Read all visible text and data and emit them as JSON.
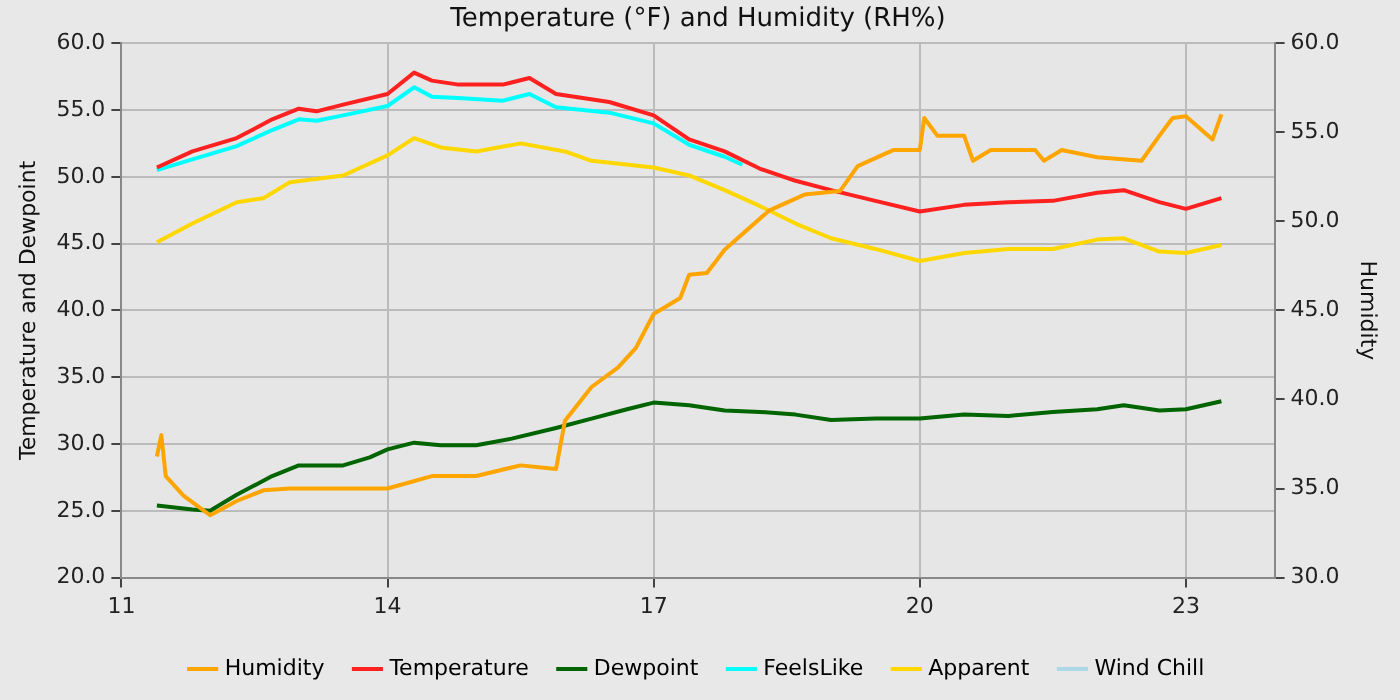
{
  "chart_data": {
    "type": "line",
    "title": "Temperature (°F) and Humidity (RH%)",
    "ylabel": "Temperature and Dewpoint",
    "y2label": "Humidity",
    "xlim": [
      11,
      24
    ],
    "xticks": [
      11,
      14,
      17,
      20,
      23
    ],
    "ylim": [
      20,
      60
    ],
    "yticks": [
      {
        "value": 20,
        "label": "20.0"
      },
      {
        "value": 25,
        "label": "25.0"
      },
      {
        "value": 30,
        "label": "30.0"
      },
      {
        "value": 35,
        "label": "35.0"
      },
      {
        "value": 40,
        "label": "40.0"
      },
      {
        "value": 45,
        "label": "45.0"
      },
      {
        "value": 50,
        "label": "50.0"
      },
      {
        "value": 55,
        "label": "55.0"
      },
      {
        "value": 60,
        "label": "60.0"
      }
    ],
    "y2lim": [
      30,
      60
    ],
    "y2ticks": [
      {
        "value": 30,
        "label": "30.0"
      },
      {
        "value": 35,
        "label": "35.0"
      },
      {
        "value": 40,
        "label": "40.0"
      },
      {
        "value": 45,
        "label": "45.0"
      },
      {
        "value": 50,
        "label": "50.0"
      },
      {
        "value": 55,
        "label": "55.0"
      },
      {
        "value": 60,
        "label": "60.0"
      }
    ],
    "grid": true,
    "legend": "bottom",
    "marker": "none",
    "line_style": "solid",
    "series": [
      {
        "name": "Humidity",
        "color": "#ffa500",
        "axis": "y2",
        "x": [
          11.4,
          11.45,
          11.5,
          11.7,
          12.0,
          12.3,
          12.6,
          12.9,
          13.5,
          14.0,
          14.5,
          15.0,
          15.5,
          15.9,
          16.0,
          16.3,
          16.6,
          16.8,
          17.0,
          17.3,
          17.4,
          17.6,
          17.8,
          18.3,
          18.7,
          19.1,
          19.3,
          19.7,
          20.0,
          20.05,
          20.2,
          20.5,
          20.6,
          20.8,
          21.3,
          21.4,
          21.6,
          22.0,
          22.5,
          22.7,
          22.85,
          23.0,
          23.3,
          23.4
        ],
        "values": [
          36.8,
          38.0,
          35.7,
          34.6,
          33.5,
          34.3,
          34.9,
          35.0,
          35.0,
          35.0,
          35.7,
          35.7,
          36.3,
          36.1,
          38.8,
          40.7,
          41.8,
          42.9,
          44.8,
          45.7,
          47.0,
          47.1,
          48.4,
          50.6,
          51.5,
          51.7,
          53.1,
          54.0,
          54.0,
          55.8,
          54.8,
          54.8,
          53.4,
          54.0,
          54.0,
          53.4,
          54.0,
          53.6,
          53.4,
          54.8,
          55.8,
          55.9,
          54.6,
          56.0
        ]
      },
      {
        "name": "Temperature",
        "color": "#ff2020",
        "x": [
          11.4,
          11.8,
          12.3,
          12.7,
          13.0,
          13.2,
          13.5,
          14.0,
          14.3,
          14.5,
          14.8,
          15.3,
          15.6,
          15.9,
          16.5,
          17.0,
          17.4,
          17.8,
          18.2,
          18.6,
          19.0,
          19.5,
          20.0,
          20.5,
          21.0,
          21.5,
          22.0,
          22.3,
          22.7,
          23.0,
          23.4
        ],
        "values": [
          50.7,
          51.9,
          52.9,
          54.3,
          55.1,
          54.9,
          55.4,
          56.2,
          57.8,
          57.2,
          56.9,
          56.9,
          57.4,
          56.2,
          55.6,
          54.6,
          52.8,
          51.9,
          50.6,
          49.7,
          49.0,
          48.2,
          47.4,
          47.9,
          48.1,
          48.2,
          48.8,
          49.0,
          48.1,
          47.6,
          48.4
        ]
      },
      {
        "name": "Dewpoint",
        "color": "#006400",
        "x": [
          11.4,
          11.8,
          12.0,
          12.3,
          12.7,
          13.0,
          13.5,
          13.8,
          14.0,
          14.3,
          14.6,
          15.0,
          15.4,
          15.9,
          16.3,
          16.7,
          17.0,
          17.4,
          17.8,
          18.2,
          18.6,
          19.0,
          19.5,
          20.0,
          20.5,
          21.0,
          21.5,
          22.0,
          22.3,
          22.7,
          23.0,
          23.4
        ],
        "values": [
          25.4,
          25.1,
          25.0,
          26.2,
          27.6,
          28.4,
          28.4,
          29.0,
          29.6,
          30.1,
          29.9,
          29.9,
          30.4,
          31.2,
          31.9,
          32.6,
          33.1,
          32.9,
          32.5,
          32.4,
          32.2,
          31.8,
          31.9,
          31.9,
          32.2,
          32.1,
          32.4,
          32.6,
          32.9,
          32.5,
          32.6,
          33.2
        ]
      },
      {
        "name": "FeelsLike",
        "color": "#00ffff",
        "x": [
          11.4,
          11.8,
          12.3,
          12.7,
          13.0,
          13.2,
          13.5,
          14.0,
          14.3,
          14.5,
          14.8,
          15.3,
          15.6,
          15.9,
          16.5,
          17.0,
          17.4,
          17.8,
          18.0
        ],
        "values": [
          50.5,
          51.3,
          52.3,
          53.5,
          54.3,
          54.2,
          54.6,
          55.3,
          56.7,
          56.0,
          55.9,
          55.7,
          56.2,
          55.2,
          54.8,
          54.0,
          52.4,
          51.5,
          50.9
        ]
      },
      {
        "name": "Apparent",
        "color": "#ffd700",
        "x": [
          11.4,
          11.8,
          12.3,
          12.6,
          12.9,
          13.5,
          14.0,
          14.3,
          14.6,
          15.0,
          15.5,
          16.0,
          16.3,
          17.0,
          17.4,
          17.8,
          18.2,
          18.6,
          19.0,
          19.5,
          20.0,
          20.5,
          21.0,
          21.5,
          22.0,
          22.3,
          22.7,
          23.0,
          23.4
        ],
        "values": [
          45.1,
          46.5,
          48.1,
          48.4,
          49.6,
          50.1,
          51.6,
          52.9,
          52.2,
          51.9,
          52.5,
          51.9,
          51.2,
          50.7,
          50.1,
          49.0,
          47.8,
          46.5,
          45.4,
          44.6,
          43.7,
          44.3,
          44.6,
          44.6,
          45.3,
          45.4,
          44.4,
          44.3,
          44.9
        ]
      },
      {
        "name": "Wind Chill",
        "color": "#add8e6"
      }
    ]
  }
}
